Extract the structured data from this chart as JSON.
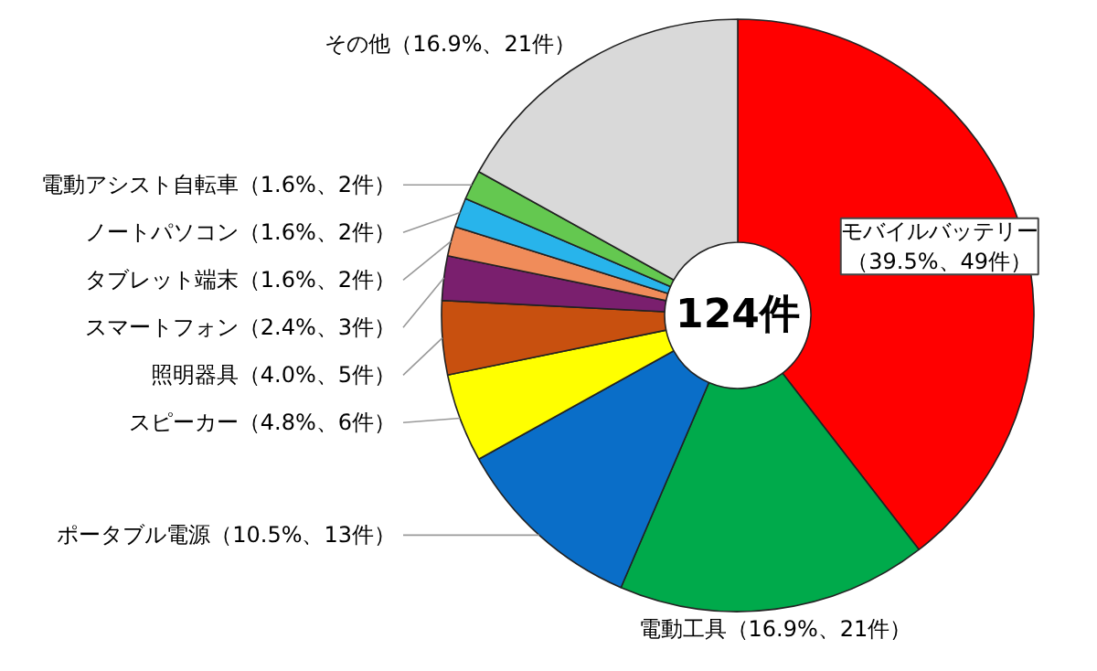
{
  "chart_data": {
    "type": "donut",
    "categories": [
      "モバイルバッテリー",
      "電動工具",
      "ポータブル電源",
      "スピーカー",
      "照明器具",
      "スマートフォン",
      "タブレット端末",
      "ノートパソコン",
      "電動アシスト自転車",
      "その他"
    ],
    "values": [
      49,
      21,
      13,
      6,
      5,
      3,
      2,
      2,
      2,
      21
    ],
    "value_labels": [
      "（39.5%、49件）",
      "（16.9%、21件）",
      "（10.5%、13件）",
      "（4.8%、6件）",
      "（4.0%、5件）",
      "（2.4%、3件）",
      "（1.6%、2件）",
      "（1.6%、2件）",
      "（1.6%、2件）",
      "（16.9%、21件）"
    ],
    "colors": [
      "#ff0000",
      "#00aa4b",
      "#0a6ec8",
      "#ffff00",
      "#c8500f",
      "#7a1f6e",
      "#f08c5a",
      "#28b4eb",
      "#64c850",
      "#d9d9d9"
    ],
    "annotations": [
      "124件"
    ]
  }
}
